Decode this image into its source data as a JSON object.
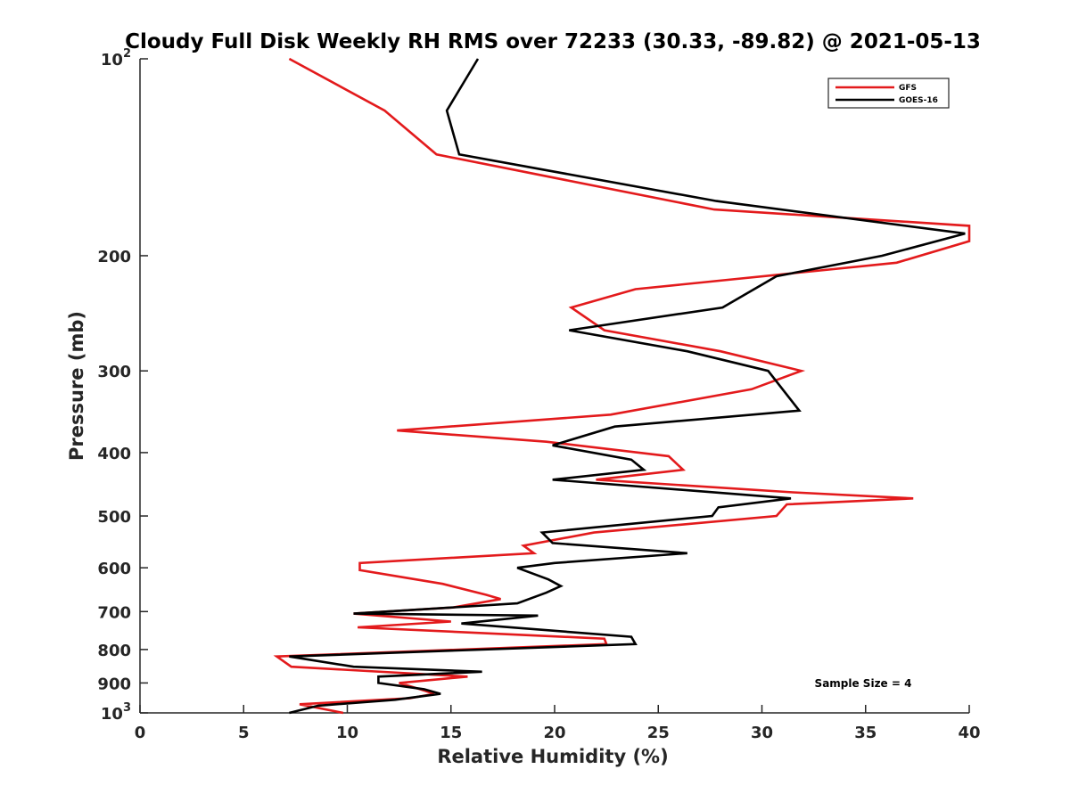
{
  "chart_data": {
    "type": "line",
    "title": "Cloudy Full Disk Weekly RH RMS over 72233 (30.33, -89.82) @ 2021-05-13",
    "xlabel": "Relative Humidity (%)",
    "ylabel": "Pressure (mb)",
    "xlim": [
      0,
      40
    ],
    "ylim": [
      100,
      1000
    ],
    "yscale": "log",
    "y_reversed": true,
    "xticks": [
      0,
      5,
      10,
      15,
      20,
      25,
      30,
      35,
      40
    ],
    "yticks": [
      {
        "value": 100,
        "label": "10",
        "sup": "2"
      },
      {
        "value": 200,
        "label": "200",
        "sup": ""
      },
      {
        "value": 300,
        "label": "300",
        "sup": ""
      },
      {
        "value": 400,
        "label": "400",
        "sup": ""
      },
      {
        "value": 500,
        "label": "500",
        "sup": ""
      },
      {
        "value": 600,
        "label": "600",
        "sup": ""
      },
      {
        "value": 700,
        "label": "700",
        "sup": ""
      },
      {
        "value": 800,
        "label": "800",
        "sup": ""
      },
      {
        "value": 900,
        "label": "900",
        "sup": ""
      },
      {
        "value": 1000,
        "label": "10",
        "sup": "3"
      }
    ],
    "legend_position": "top-right",
    "annotation": "Sample Size = 4",
    "series": [
      {
        "name": "GFS",
        "color": "#e31a1c",
        "points": [
          [
            7.2,
            100
          ],
          [
            11.8,
            120
          ],
          [
            14.3,
            140
          ],
          [
            27.7,
            170
          ],
          [
            40.0,
            180
          ],
          [
            40.0,
            190
          ],
          [
            36.5,
            205
          ],
          [
            23.9,
            225
          ],
          [
            20.8,
            240
          ],
          [
            22.4,
            260
          ],
          [
            28.0,
            280
          ],
          [
            31.9,
            300
          ],
          [
            29.5,
            320
          ],
          [
            22.7,
            350
          ],
          [
            12.4,
            370
          ],
          [
            19.6,
            385
          ],
          [
            25.5,
            405
          ],
          [
            26.2,
            425
          ],
          [
            22.0,
            440
          ],
          [
            31.5,
            460
          ],
          [
            37.3,
            470
          ],
          [
            31.2,
            480
          ],
          [
            30.7,
            500
          ],
          [
            21.9,
            530
          ],
          [
            18.5,
            555
          ],
          [
            19.0,
            570
          ],
          [
            10.6,
            590
          ],
          [
            10.6,
            605
          ],
          [
            14.6,
            635
          ],
          [
            16.7,
            660
          ],
          [
            17.4,
            670
          ],
          [
            15.1,
            690
          ],
          [
            10.3,
            705
          ],
          [
            15.0,
            725
          ],
          [
            10.5,
            740
          ],
          [
            22.4,
            770
          ],
          [
            22.5,
            785
          ],
          [
            6.6,
            820
          ],
          [
            7.3,
            850
          ],
          [
            15.8,
            880
          ],
          [
            12.5,
            900
          ],
          [
            13.5,
            920
          ],
          [
            14.2,
            935
          ],
          [
            13.0,
            950
          ],
          [
            7.7,
            970
          ],
          [
            9.8,
            1000
          ]
        ]
      },
      {
        "name": "GOES-16",
        "color": "#000000",
        "points": [
          [
            16.3,
            100
          ],
          [
            14.8,
            120
          ],
          [
            15.4,
            140
          ],
          [
            27.8,
            165
          ],
          [
            39.8,
            185
          ],
          [
            35.8,
            200
          ],
          [
            30.7,
            215
          ],
          [
            28.1,
            240
          ],
          [
            20.7,
            260
          ],
          [
            26.4,
            280
          ],
          [
            30.3,
            300
          ],
          [
            31.8,
            345
          ],
          [
            22.9,
            365
          ],
          [
            19.9,
            390
          ],
          [
            23.7,
            410
          ],
          [
            24.3,
            425
          ],
          [
            19.9,
            440
          ],
          [
            31.4,
            470
          ],
          [
            27.9,
            485
          ],
          [
            27.6,
            500
          ],
          [
            19.4,
            530
          ],
          [
            19.9,
            550
          ],
          [
            26.4,
            570
          ],
          [
            20.0,
            590
          ],
          [
            18.2,
            600
          ],
          [
            19.7,
            625
          ],
          [
            20.3,
            640
          ],
          [
            19.6,
            655
          ],
          [
            18.2,
            680
          ],
          [
            10.3,
            705
          ],
          [
            19.2,
            710
          ],
          [
            15.5,
            730
          ],
          [
            23.7,
            765
          ],
          [
            23.9,
            785
          ],
          [
            7.2,
            820
          ],
          [
            10.3,
            850
          ],
          [
            16.5,
            865
          ],
          [
            11.5,
            880
          ],
          [
            11.5,
            900
          ],
          [
            13.7,
            920
          ],
          [
            14.5,
            935
          ],
          [
            12.3,
            955
          ],
          [
            8.6,
            975
          ],
          [
            7.2,
            1000
          ]
        ]
      }
    ]
  }
}
